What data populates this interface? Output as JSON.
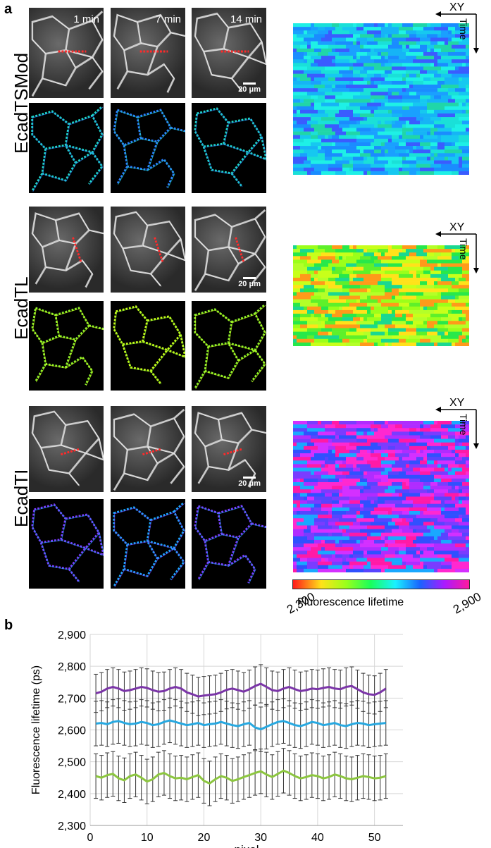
{
  "panel_a": {
    "letter": "a",
    "time_labels": [
      "1 min",
      "7 min",
      "14 min"
    ],
    "scale_bar": "20 μm",
    "rows": [
      {
        "label": "EcadTSMod",
        "kymo_colors": [
          "#16c8f0",
          "#1ae0d8",
          "#1a8cff",
          "#1aa0ff",
          "#20d6a8",
          "#3a5cff",
          "#16b4f6",
          "#1ef0e6"
        ]
      },
      {
        "label": "EcadTL",
        "kymo_colors": [
          "#9bff1a",
          "#5ef02a",
          "#c8ff1a",
          "#28e84a",
          "#ffe21a",
          "#ff9a1a",
          "#1ad890",
          "#b4ff28"
        ]
      },
      {
        "label": "EcadTI",
        "kymo_colors": [
          "#7a3cff",
          "#b02cff",
          "#ff28d0",
          "#3050ff",
          "#1aa8ff",
          "#d430ff",
          "#5844ff",
          "#ff1aa6"
        ]
      }
    ],
    "axis_labels": {
      "xy": "XY",
      "time": "Time"
    },
    "colorbar": {
      "min": "2,300",
      "max": "2,900",
      "title": "Fluorescence lifetime"
    }
  },
  "panel_b": {
    "letter": "b"
  },
  "chart_data": {
    "type": "line",
    "xlabel": "pixel",
    "ylabel": "Fluorescence lifetime (ps)",
    "xlim": [
      0,
      55
    ],
    "ylim": [
      2300,
      2900
    ],
    "xticks": [
      "0",
      "10",
      "20",
      "30",
      "40",
      "50"
    ],
    "yticks": [
      "2,300",
      "2,400",
      "2,500",
      "2,600",
      "2,700",
      "2,800",
      "2,900"
    ],
    "grid": true,
    "x": [
      1,
      2,
      3,
      4,
      5,
      6,
      7,
      8,
      9,
      10,
      11,
      12,
      13,
      14,
      15,
      16,
      17,
      18,
      19,
      20,
      21,
      22,
      23,
      24,
      25,
      26,
      27,
      28,
      29,
      30,
      31,
      32,
      33,
      34,
      35,
      36,
      37,
      38,
      39,
      40,
      41,
      42,
      43,
      44,
      45,
      46,
      47,
      48,
      49,
      50,
      51,
      52
    ],
    "series": [
      {
        "color": "#7b35a8",
        "error": 60,
        "values": [
          2715,
          2720,
          2730,
          2735,
          2730,
          2722,
          2725,
          2730,
          2735,
          2732,
          2725,
          2720,
          2722,
          2730,
          2735,
          2730,
          2718,
          2712,
          2705,
          2708,
          2710,
          2712,
          2718,
          2726,
          2730,
          2725,
          2720,
          2728,
          2738,
          2745,
          2735,
          2725,
          2722,
          2730,
          2735,
          2728,
          2722,
          2725,
          2730,
          2728,
          2732,
          2735,
          2730,
          2728,
          2735,
          2738,
          2728,
          2718,
          2712,
          2710,
          2718,
          2730
        ]
      },
      {
        "color": "#27a8e0",
        "error": 70,
        "values": [
          2620,
          2622,
          2618,
          2625,
          2628,
          2622,
          2618,
          2620,
          2625,
          2622,
          2615,
          2618,
          2625,
          2630,
          2625,
          2620,
          2615,
          2618,
          2622,
          2615,
          2618,
          2620,
          2625,
          2620,
          2615,
          2612,
          2618,
          2622,
          2608,
          2602,
          2610,
          2618,
          2625,
          2628,
          2622,
          2615,
          2612,
          2618,
          2625,
          2622,
          2615,
          2618,
          2622,
          2615,
          2612,
          2618,
          2622,
          2620,
          2615,
          2618,
          2620,
          2622
        ]
      },
      {
        "color": "#8cc63f",
        "error": 70,
        "values": [
          2455,
          2450,
          2458,
          2462,
          2448,
          2442,
          2455,
          2460,
          2450,
          2438,
          2445,
          2460,
          2465,
          2455,
          2448,
          2450,
          2445,
          2452,
          2458,
          2440,
          2432,
          2445,
          2455,
          2450,
          2440,
          2445,
          2452,
          2458,
          2465,
          2470,
          2460,
          2452,
          2462,
          2472,
          2465,
          2455,
          2448,
          2452,
          2458,
          2455,
          2448,
          2452,
          2460,
          2455,
          2448,
          2445,
          2450,
          2455,
          2452,
          2448,
          2450,
          2455
        ]
      }
    ]
  }
}
